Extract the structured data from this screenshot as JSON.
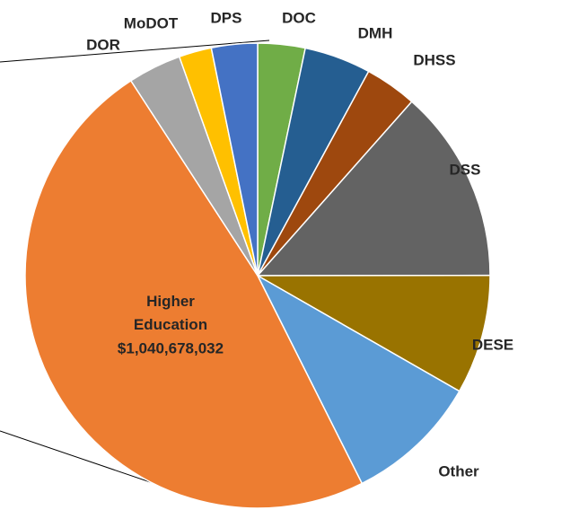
{
  "chart_data": {
    "type": "pie",
    "categories": [
      "DOC",
      "DMH",
      "DHSS",
      "DSS",
      "DESE",
      "Other",
      "Higher Education",
      "DOR",
      "MoDOT",
      "DPS"
    ],
    "values": [
      71000000,
      100000000,
      78000000,
      290000000,
      179000000,
      201000000,
      1040678032,
      80000000,
      49000000,
      69000000
    ],
    "value_labels": [
      null,
      null,
      null,
      null,
      null,
      null,
      "$1,040,678,032",
      null,
      null,
      null
    ],
    "colors": [
      "#70ad47",
      "#255e91",
      "#9e480e",
      "#636363",
      "#997300",
      "#5b9bd5",
      "#ed7d31",
      "#a5a5a5",
      "#ffc000",
      "#4472c4"
    ]
  }
}
